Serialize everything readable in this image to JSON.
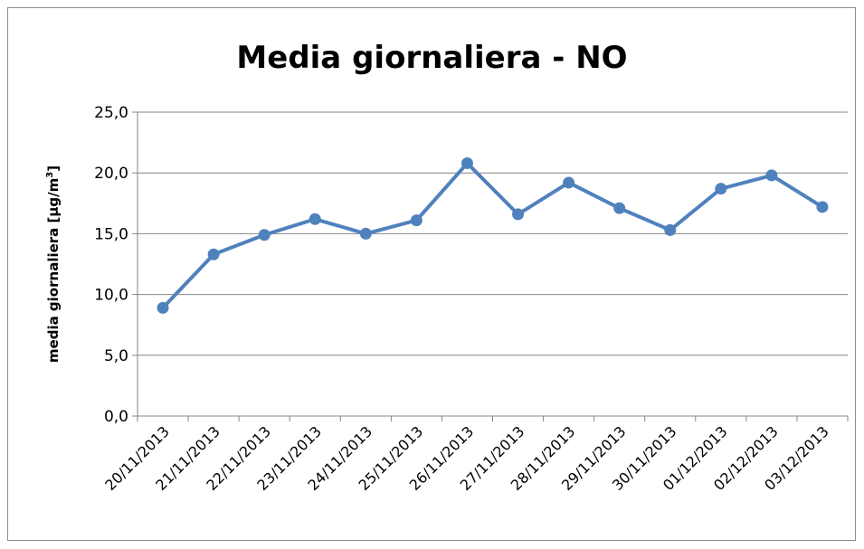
{
  "chart_data": {
    "type": "line",
    "title": "Media giornaliera - NO",
    "xlabel": "",
    "ylabel": "media giornaliera [µg/m",
    "ylabel_sup": "3",
    "ylabel_suffix": "]",
    "ylim": [
      0,
      25
    ],
    "yticks": [
      "0,0",
      "5,0",
      "10,0",
      "15,0",
      "20,0",
      "25,0"
    ],
    "grid": true,
    "categories": [
      "20/11/2013",
      "21/11/2013",
      "22/11/2013",
      "23/11/2013",
      "24/11/2013",
      "25/11/2013",
      "26/11/2013",
      "27/11/2013",
      "28/11/2013",
      "29/11/2013",
      "30/11/2013",
      "01/12/2013",
      "02/12/2013",
      "03/12/2013"
    ],
    "series": [
      {
        "values": [
          8.9,
          13.3,
          14.9,
          16.2,
          15.0,
          16.1,
          20.8,
          16.6,
          19.2,
          17.1,
          15.3,
          18.7,
          19.8,
          17.2
        ]
      }
    ],
    "colors": {
      "line": "#4f81bd",
      "grid": "#868686",
      "axis": "#868686"
    }
  }
}
